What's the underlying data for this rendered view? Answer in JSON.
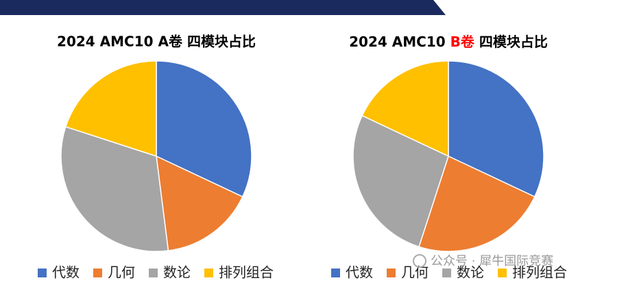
{
  "chart_data": [
    {
      "type": "pie",
      "title": "2024 AMC10 A卷 四模块占比",
      "categories": [
        "代数",
        "几何",
        "数论",
        "排列组合"
      ],
      "values": [
        32,
        16,
        32,
        20
      ],
      "colors": [
        "#4472c4",
        "#ed7d31",
        "#a5a5a5",
        "#ffc000"
      ]
    },
    {
      "type": "pie",
      "title_parts": [
        {
          "text": "2024 AMC10 ",
          "color": "#000000"
        },
        {
          "text": "B卷",
          "color": "#ff0000"
        },
        {
          "text": " 四模块占比",
          "color": "#000000"
        }
      ],
      "categories": [
        "代数",
        "几何",
        "数论",
        "排列组合"
      ],
      "values": [
        32,
        23,
        27,
        18
      ],
      "colors": [
        "#4472c4",
        "#ed7d31",
        "#a5a5a5",
        "#ffc000"
      ]
    }
  ],
  "watermark": "公众号 · 犀牛国际竞赛"
}
